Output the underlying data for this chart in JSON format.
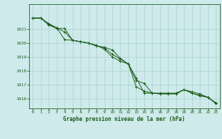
{
  "title": "Graphe pression niveau de la mer (hPa)",
  "bg_color": "#ceeaea",
  "grid_color": "#aacfcf",
  "line_color": "#1a5c1a",
  "xlim": [
    -0.5,
    23.5
  ],
  "ylim": [
    1015.3,
    1022.8
  ],
  "yticks": [
    1016,
    1017,
    1018,
    1019,
    1020,
    1021
  ],
  "xticks": [
    0,
    1,
    2,
    3,
    4,
    5,
    6,
    7,
    8,
    9,
    10,
    11,
    12,
    13,
    14,
    15,
    16,
    17,
    18,
    19,
    20,
    21,
    22,
    23
  ],
  "line1": [
    1021.8,
    1021.8,
    1021.4,
    1021.1,
    1020.8,
    1020.2,
    1020.1,
    1020.0,
    1019.8,
    1019.7,
    1019.5,
    1018.9,
    1018.5,
    1017.3,
    1017.1,
    1016.4,
    1016.4,
    1016.4,
    1016.4,
    1016.65,
    1016.5,
    1016.35,
    1016.1,
    1015.7
  ],
  "line2": [
    1021.8,
    1021.8,
    1021.3,
    1021.05,
    1021.05,
    1020.2,
    1020.1,
    1020.0,
    1019.8,
    1019.65,
    1019.2,
    1018.85,
    1018.5,
    1017.5,
    1016.4,
    1016.4,
    1016.35,
    1016.35,
    1016.35,
    1016.65,
    1016.4,
    1016.25,
    1016.1,
    1015.65
  ],
  "line3": [
    1021.8,
    1021.8,
    1021.35,
    1021.1,
    1020.25,
    1020.2,
    1020.1,
    1020.0,
    1019.85,
    1019.55,
    1019.0,
    1018.7,
    1018.5,
    1016.85,
    1016.55,
    1016.4,
    1016.35,
    1016.35,
    1016.35,
    1016.65,
    1016.4,
    1016.2,
    1016.1,
    1015.7
  ]
}
